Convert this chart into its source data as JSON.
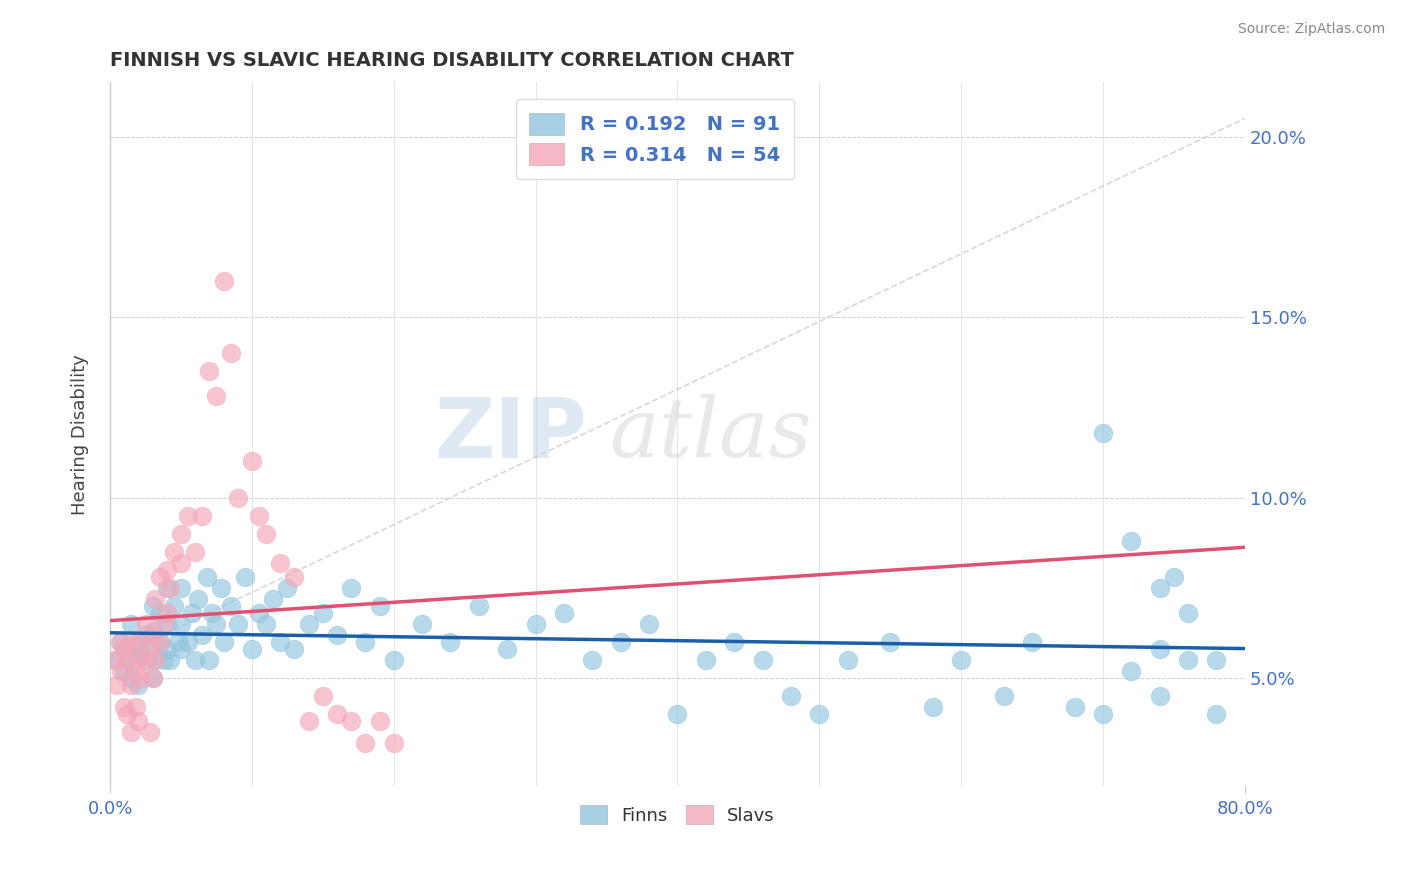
{
  "title": "FINNISH VS SLAVIC HEARING DISABILITY CORRELATION CHART",
  "source": "Source: ZipAtlas.com",
  "ylabel": "Hearing Disability",
  "legend_labels": [
    "Finns",
    "Slavs"
  ],
  "finns_R": 0.192,
  "finns_N": 91,
  "slavs_R": 0.314,
  "slavs_N": 54,
  "xlim": [
    0.0,
    0.8
  ],
  "ylim": [
    0.02,
    0.215
  ],
  "yticks": [
    0.05,
    0.1,
    0.15,
    0.2
  ],
  "xtick_positions": [
    0.0,
    0.8
  ],
  "xtick_labels": [
    "0.0%",
    "80.0%"
  ],
  "finn_color": "#92c5de",
  "slav_color": "#f4a6b8",
  "finn_line_color": "#1a5fa8",
  "slav_line_color": "#e05070",
  "axis_label_color": "#4472c4",
  "tick_color": "#4472c4",
  "background_color": "#ffffff",
  "watermark1": "ZIP",
  "watermark2": "atlas",
  "finns_scatter_x": [
    0.005,
    0.008,
    0.01,
    0.012,
    0.015,
    0.015,
    0.018,
    0.02,
    0.02,
    0.022,
    0.025,
    0.025,
    0.028,
    0.03,
    0.03,
    0.03,
    0.032,
    0.035,
    0.035,
    0.038,
    0.04,
    0.04,
    0.04,
    0.042,
    0.045,
    0.048,
    0.05,
    0.05,
    0.05,
    0.055,
    0.058,
    0.06,
    0.062,
    0.065,
    0.068,
    0.07,
    0.072,
    0.075,
    0.078,
    0.08,
    0.085,
    0.09,
    0.095,
    0.1,
    0.105,
    0.11,
    0.115,
    0.12,
    0.125,
    0.13,
    0.14,
    0.15,
    0.16,
    0.17,
    0.18,
    0.19,
    0.2,
    0.22,
    0.24,
    0.26,
    0.28,
    0.3,
    0.32,
    0.34,
    0.36,
    0.38,
    0.4,
    0.42,
    0.44,
    0.46,
    0.48,
    0.5,
    0.52,
    0.55,
    0.58,
    0.6,
    0.63,
    0.65,
    0.68,
    0.7,
    0.72,
    0.74,
    0.76,
    0.78,
    0.7,
    0.72,
    0.74,
    0.76,
    0.78,
    0.74,
    0.75
  ],
  "finns_scatter_y": [
    0.055,
    0.06,
    0.052,
    0.058,
    0.05,
    0.065,
    0.055,
    0.06,
    0.048,
    0.057,
    0.055,
    0.062,
    0.058,
    0.05,
    0.063,
    0.07,
    0.055,
    0.06,
    0.068,
    0.055,
    0.058,
    0.065,
    0.075,
    0.055,
    0.07,
    0.06,
    0.058,
    0.065,
    0.075,
    0.06,
    0.068,
    0.055,
    0.072,
    0.062,
    0.078,
    0.055,
    0.068,
    0.065,
    0.075,
    0.06,
    0.07,
    0.065,
    0.078,
    0.058,
    0.068,
    0.065,
    0.072,
    0.06,
    0.075,
    0.058,
    0.065,
    0.068,
    0.062,
    0.075,
    0.06,
    0.07,
    0.055,
    0.065,
    0.06,
    0.07,
    0.058,
    0.065,
    0.068,
    0.055,
    0.06,
    0.065,
    0.04,
    0.055,
    0.06,
    0.055,
    0.045,
    0.04,
    0.055,
    0.06,
    0.042,
    0.055,
    0.045,
    0.06,
    0.042,
    0.04,
    0.052,
    0.045,
    0.055,
    0.04,
    0.118,
    0.088,
    0.058,
    0.068,
    0.055,
    0.075,
    0.078
  ],
  "slavs_scatter_x": [
    0.003,
    0.005,
    0.007,
    0.008,
    0.01,
    0.01,
    0.012,
    0.012,
    0.015,
    0.015,
    0.015,
    0.018,
    0.018,
    0.02,
    0.02,
    0.02,
    0.022,
    0.025,
    0.025,
    0.028,
    0.028,
    0.03,
    0.03,
    0.032,
    0.032,
    0.035,
    0.035,
    0.038,
    0.04,
    0.04,
    0.042,
    0.045,
    0.05,
    0.05,
    0.055,
    0.06,
    0.065,
    0.07,
    0.075,
    0.08,
    0.085,
    0.09,
    0.1,
    0.105,
    0.11,
    0.12,
    0.13,
    0.14,
    0.15,
    0.16,
    0.17,
    0.18,
    0.19,
    0.2
  ],
  "slavs_scatter_y": [
    0.055,
    0.048,
    0.06,
    0.052,
    0.042,
    0.058,
    0.055,
    0.04,
    0.048,
    0.035,
    0.06,
    0.052,
    0.042,
    0.055,
    0.06,
    0.038,
    0.05,
    0.055,
    0.065,
    0.058,
    0.035,
    0.05,
    0.062,
    0.055,
    0.072,
    0.06,
    0.078,
    0.065,
    0.068,
    0.08,
    0.075,
    0.085,
    0.082,
    0.09,
    0.095,
    0.085,
    0.095,
    0.135,
    0.128,
    0.16,
    0.14,
    0.1,
    0.11,
    0.095,
    0.09,
    0.082,
    0.078,
    0.038,
    0.045,
    0.04,
    0.038,
    0.032,
    0.038,
    0.032
  ]
}
